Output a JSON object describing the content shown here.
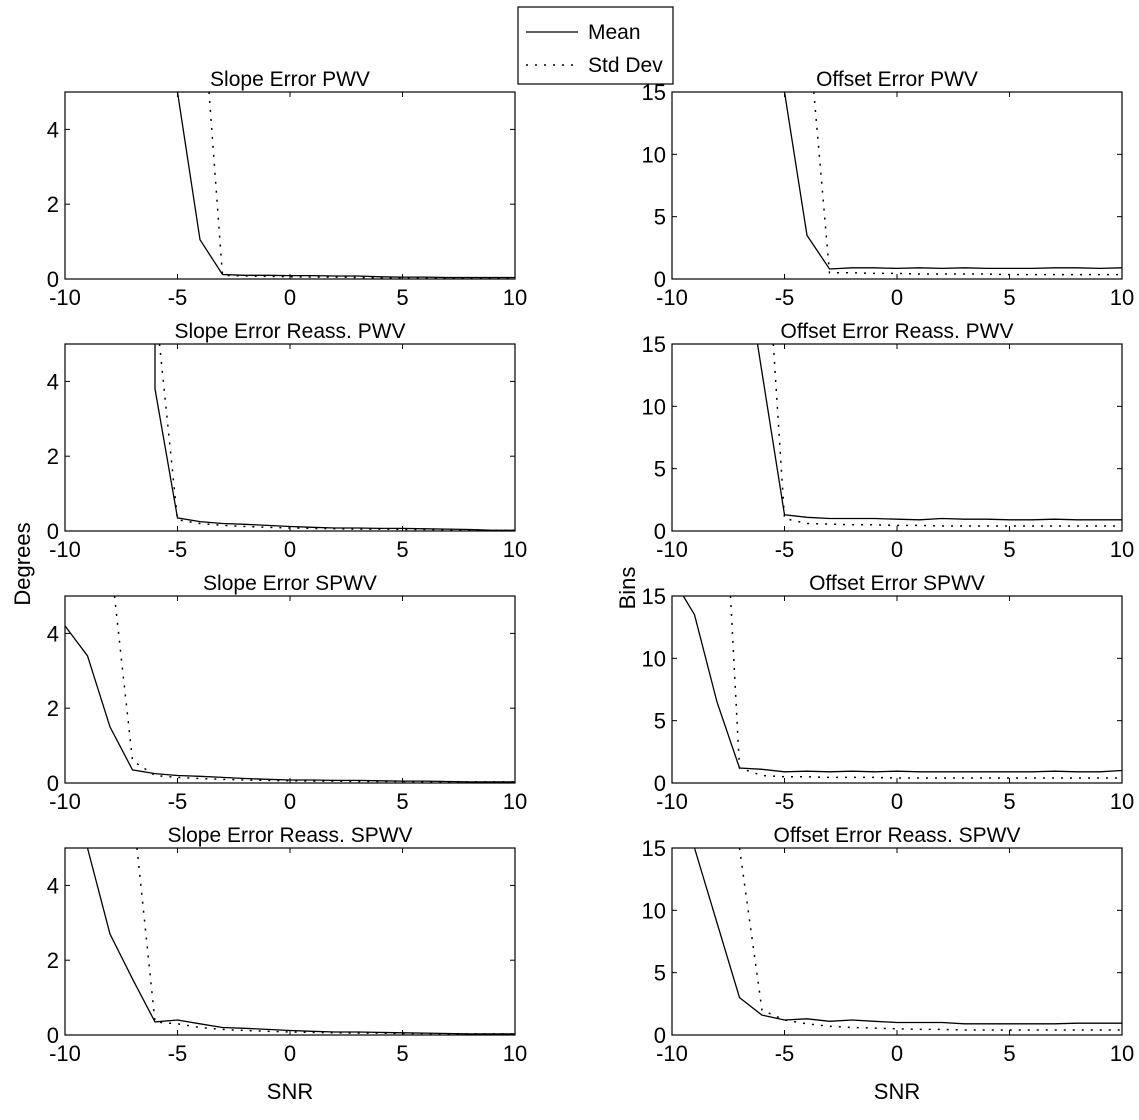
{
  "legend": {
    "mean_label": "Mean",
    "std_label": "Std Dev"
  },
  "chart_data": [
    {
      "type": "line",
      "title": "Slope Error PWV",
      "xlabel": "",
      "ylabel": "",
      "xlim": [
        -10,
        10
      ],
      "ylim": [
        0,
        5
      ],
      "xticks": [
        -10,
        -5,
        0,
        5,
        10
      ],
      "yticks": [
        0,
        2,
        4
      ],
      "grid": false,
      "series": [
        {
          "name": "Mean",
          "x": [
            -5,
            -4,
            -3,
            -2,
            -1,
            0,
            1,
            2,
            3,
            4,
            5,
            6,
            7,
            8,
            9,
            10
          ],
          "y": [
            5.0,
            1.05,
            0.12,
            0.1,
            0.1,
            0.09,
            0.09,
            0.08,
            0.08,
            0.06,
            0.05,
            0.05,
            0.04,
            0.04,
            0.04,
            0.04
          ]
        },
        {
          "name": "Std Dev",
          "x": [
            -3.6,
            -3,
            -2,
            -1,
            0,
            1,
            2,
            3,
            4,
            5,
            6,
            7,
            8,
            9,
            10
          ],
          "y": [
            5.0,
            0.1,
            0.08,
            0.07,
            0.06,
            0.05,
            0.05,
            0.04,
            0.03,
            0.03,
            0.02,
            0.02,
            0.02,
            0.02,
            0.02
          ]
        }
      ]
    },
    {
      "type": "line",
      "title": "Offset Error PWV",
      "xlabel": "",
      "ylabel": "",
      "xlim": [
        -10,
        10
      ],
      "ylim": [
        0,
        15
      ],
      "xticks": [
        -10,
        -5,
        0,
        5,
        10
      ],
      "yticks": [
        0,
        5,
        10,
        15
      ],
      "grid": false,
      "series": [
        {
          "name": "Mean",
          "x": [
            -5,
            -4,
            -3,
            -2,
            -1,
            0,
            1,
            2,
            3,
            4,
            5,
            6,
            7,
            8,
            9,
            10
          ],
          "y": [
            15.0,
            3.5,
            0.8,
            0.9,
            0.9,
            0.85,
            0.9,
            0.85,
            0.9,
            0.85,
            0.85,
            0.85,
            0.9,
            0.9,
            0.85,
            0.9
          ]
        },
        {
          "name": "Std Dev",
          "x": [
            -3.7,
            -3,
            -2,
            -1,
            0,
            1,
            2,
            3,
            4,
            5,
            6,
            7,
            8,
            9,
            10
          ],
          "y": [
            15.0,
            0.5,
            0.5,
            0.45,
            0.45,
            0.4,
            0.4,
            0.4,
            0.4,
            0.35,
            0.35,
            0.35,
            0.35,
            0.35,
            0.35
          ]
        }
      ]
    },
    {
      "type": "line",
      "title": "Slope Error Reass. PWV",
      "xlabel": "",
      "ylabel": "",
      "xlim": [
        -10,
        10
      ],
      "ylim": [
        0,
        5
      ],
      "xticks": [
        -10,
        -5,
        0,
        5,
        10
      ],
      "yticks": [
        0,
        2,
        4
      ],
      "grid": false,
      "series": [
        {
          "name": "Mean",
          "x": [
            -6,
            -6,
            -5,
            -4,
            -3,
            -2,
            -1,
            0,
            1,
            2,
            3,
            4,
            5,
            6,
            7,
            8,
            9,
            10
          ],
          "y": [
            5.0,
            3.8,
            0.35,
            0.25,
            0.2,
            0.18,
            0.15,
            0.12,
            0.1,
            0.08,
            0.08,
            0.07,
            0.07,
            0.06,
            0.05,
            0.04,
            0.02,
            0.02
          ]
        },
        {
          "name": "Std Dev",
          "x": [
            -5.8,
            -5,
            -4,
            -3,
            -2,
            -1,
            0,
            1,
            2,
            3,
            4,
            5,
            6,
            7,
            8,
            9,
            10
          ],
          "y": [
            5.0,
            0.3,
            0.2,
            0.15,
            0.12,
            0.1,
            0.08,
            0.07,
            0.06,
            0.05,
            0.05,
            0.04,
            0.04,
            0.03,
            0.03,
            0.02,
            0.02
          ]
        }
      ]
    },
    {
      "type": "line",
      "title": "Offset Error Reass. PWV",
      "xlabel": "",
      "ylabel": "",
      "xlim": [
        -10,
        10
      ],
      "ylim": [
        0,
        15
      ],
      "xticks": [
        -10,
        -5,
        0,
        5,
        10
      ],
      "yticks": [
        0,
        5,
        10,
        15
      ],
      "grid": false,
      "series": [
        {
          "name": "Mean",
          "x": [
            -6.2,
            -5,
            -4,
            -3,
            -2,
            -1,
            0,
            1,
            2,
            3,
            4,
            5,
            6,
            7,
            8,
            9,
            10
          ],
          "y": [
            15.0,
            1.3,
            1.1,
            1.0,
            1.0,
            1.0,
            0.95,
            0.9,
            1.0,
            0.95,
            0.95,
            0.9,
            0.9,
            0.95,
            0.9,
            0.9,
            0.9
          ]
        },
        {
          "name": "Std Dev",
          "x": [
            -5.5,
            -5,
            -4,
            -3,
            -2,
            -1,
            0,
            1,
            2,
            3,
            4,
            5,
            6,
            7,
            8,
            9,
            10
          ],
          "y": [
            15.0,
            1.0,
            0.6,
            0.55,
            0.5,
            0.5,
            0.45,
            0.45,
            0.4,
            0.4,
            0.4,
            0.4,
            0.4,
            0.4,
            0.4,
            0.4,
            0.4
          ]
        }
      ]
    },
    {
      "type": "line",
      "title": "Slope Error SPWV",
      "xlabel": "",
      "ylabel": "",
      "xlim": [
        -10,
        10
      ],
      "ylim": [
        0,
        5
      ],
      "xticks": [
        -10,
        -5,
        0,
        5,
        10
      ],
      "yticks": [
        0,
        2,
        4
      ],
      "grid": false,
      "series": [
        {
          "name": "Mean",
          "x": [
            -10,
            -9,
            -8,
            -7,
            -6,
            -5,
            -4,
            -3,
            -2,
            -1,
            0,
            1,
            2,
            3,
            4,
            5,
            6,
            7,
            8,
            9,
            10
          ],
          "y": [
            4.2,
            3.4,
            1.5,
            0.35,
            0.25,
            0.2,
            0.18,
            0.15,
            0.12,
            0.1,
            0.08,
            0.08,
            0.07,
            0.07,
            0.06,
            0.05,
            0.05,
            0.04,
            0.03,
            0.03,
            0.03
          ]
        },
        {
          "name": "Std Dev",
          "x": [
            -7.8,
            -7,
            -6,
            -5,
            -4,
            -3,
            -2,
            -1,
            0,
            1,
            2,
            3,
            4,
            5,
            6,
            7,
            8,
            9,
            10
          ],
          "y": [
            5.0,
            0.6,
            0.2,
            0.15,
            0.12,
            0.1,
            0.08,
            0.07,
            0.06,
            0.05,
            0.05,
            0.04,
            0.04,
            0.04,
            0.03,
            0.03,
            0.03,
            0.03,
            0.03
          ]
        }
      ]
    },
    {
      "type": "line",
      "title": "Offset Error SPWV",
      "xlabel": "",
      "ylabel": "",
      "xlim": [
        -10,
        10
      ],
      "ylim": [
        0,
        15
      ],
      "xticks": [
        -10,
        -5,
        0,
        5,
        10
      ],
      "yticks": [
        0,
        5,
        10,
        15
      ],
      "grid": false,
      "series": [
        {
          "name": "Mean",
          "x": [
            -9.5,
            -9,
            -8,
            -7,
            -6,
            -5,
            -4,
            -3,
            -2,
            -1,
            0,
            1,
            2,
            3,
            4,
            5,
            6,
            7,
            8,
            9,
            10
          ],
          "y": [
            15.0,
            13.5,
            6.5,
            1.2,
            1.1,
            0.9,
            0.95,
            0.9,
            0.95,
            0.9,
            0.95,
            0.9,
            0.9,
            0.9,
            0.9,
            0.9,
            0.9,
            0.95,
            0.9,
            0.9,
            1.0
          ]
        },
        {
          "name": "Std Dev",
          "x": [
            -7.4,
            -7,
            -6,
            -5,
            -4,
            -3,
            -2,
            -1,
            0,
            1,
            2,
            3,
            4,
            5,
            6,
            7,
            8,
            9,
            10
          ],
          "y": [
            15.0,
            1.2,
            0.6,
            0.5,
            0.5,
            0.45,
            0.45,
            0.45,
            0.4,
            0.4,
            0.4,
            0.4,
            0.4,
            0.4,
            0.4,
            0.4,
            0.4,
            0.4,
            0.4
          ]
        }
      ]
    },
    {
      "type": "line",
      "title": "Slope Error Reass. SPWV",
      "xlabel": "SNR",
      "ylabel": "",
      "xlim": [
        -10,
        10
      ],
      "ylim": [
        0,
        5
      ],
      "xticks": [
        -10,
        -5,
        0,
        5,
        10
      ],
      "yticks": [
        0,
        2,
        4
      ],
      "grid": false,
      "series": [
        {
          "name": "Mean",
          "x": [
            -9,
            -8,
            -7,
            -6,
            -5,
            -4,
            -3,
            -2,
            -1,
            0,
            1,
            2,
            3,
            4,
            5,
            6,
            7,
            8,
            9,
            10
          ],
          "y": [
            5.0,
            2.7,
            1.5,
            0.35,
            0.4,
            0.3,
            0.2,
            0.18,
            0.15,
            0.12,
            0.1,
            0.08,
            0.08,
            0.07,
            0.06,
            0.05,
            0.04,
            0.03,
            0.03,
            0.03
          ]
        },
        {
          "name": "Std Dev",
          "x": [
            -6.8,
            -6,
            -5,
            -4,
            -3,
            -2,
            -1,
            0,
            1,
            2,
            3,
            4,
            5,
            6,
            7,
            8,
            9,
            10
          ],
          "y": [
            5.0,
            0.35,
            0.3,
            0.2,
            0.15,
            0.12,
            0.1,
            0.08,
            0.07,
            0.06,
            0.05,
            0.05,
            0.04,
            0.04,
            0.03,
            0.03,
            0.03,
            0.03
          ]
        }
      ]
    },
    {
      "type": "line",
      "title": "Offset Error Reass. SPWV",
      "xlabel": "SNR",
      "ylabel": "",
      "xlim": [
        -10,
        10
      ],
      "ylim": [
        0,
        15
      ],
      "xticks": [
        -10,
        -5,
        0,
        5,
        10
      ],
      "yticks": [
        0,
        5,
        10,
        15
      ],
      "grid": false,
      "series": [
        {
          "name": "Mean",
          "x": [
            -9,
            -8,
            -7,
            -6,
            -5,
            -4,
            -3,
            -2,
            -1,
            0,
            1,
            2,
            3,
            4,
            5,
            6,
            7,
            8,
            9,
            10
          ],
          "y": [
            15.0,
            9.0,
            3.0,
            1.6,
            1.2,
            1.3,
            1.1,
            1.2,
            1.1,
            1.0,
            1.0,
            1.0,
            0.9,
            0.9,
            0.9,
            0.9,
            0.9,
            0.95,
            0.95,
            0.95
          ]
        },
        {
          "name": "Std Dev",
          "x": [
            -7,
            -6,
            -5,
            -4,
            -3,
            -2,
            -1,
            0,
            1,
            2,
            3,
            4,
            5,
            6,
            7,
            8,
            9,
            10
          ],
          "y": [
            15.0,
            2.0,
            1.2,
            0.9,
            0.7,
            0.6,
            0.55,
            0.5,
            0.45,
            0.45,
            0.4,
            0.4,
            0.4,
            0.4,
            0.4,
            0.4,
            0.4,
            0.4
          ]
        }
      ]
    }
  ],
  "shared_labels": {
    "left_ylabel": "Degrees",
    "right_ylabel": "Bins"
  }
}
